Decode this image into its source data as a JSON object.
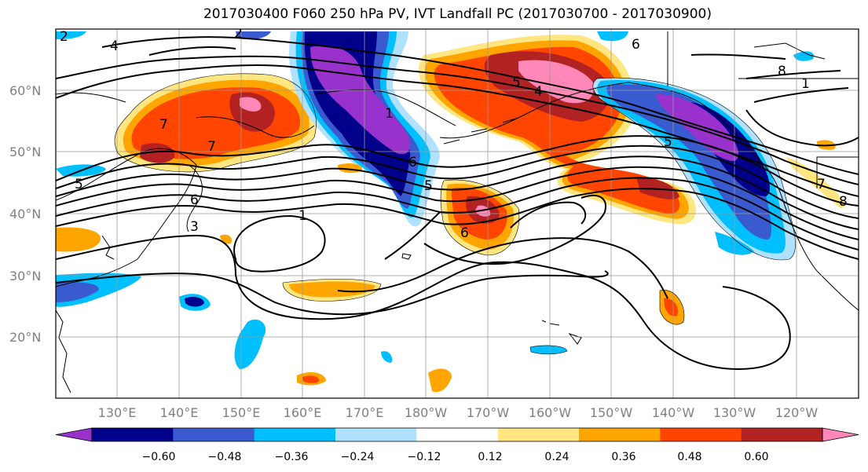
{
  "title": "2017030400 F060 250 hPa PV, IVT Landfall PC (2017030700 - 2017030900)",
  "lat_labels": [
    "60°N",
    "50°N",
    "40°N",
    "30°N",
    "20°N"
  ],
  "lon_labels": [
    "130°E",
    "140°E",
    "150°E",
    "160°E",
    "170°E",
    "180°W",
    "170°W",
    "160°W",
    "150°W",
    "140°W",
    "130°W",
    "120°W"
  ],
  "colorbar": {
    "tick_labels": [
      "−0.60",
      "−0.48",
      "−0.36",
      "−0.24",
      "−0.12",
      "0.12",
      "0.24",
      "0.36",
      "0.48",
      "0.60"
    ],
    "colors": [
      "#9932cc",
      "#00008b",
      "#3a5bd0",
      "#00bfff",
      "#b0e2ff",
      "#ffffff",
      "#ffe680",
      "#ffa500",
      "#ff4500",
      "#b22222",
      "#ff88b8"
    ]
  },
  "contour_labels": [
    "2",
    "4",
    "5",
    "7",
    "6",
    "7",
    "5",
    "5",
    "3",
    "1",
    "6",
    "4",
    "5",
    "6",
    "8",
    "1",
    "2",
    "6",
    "8",
    "1",
    "7"
  ]
}
